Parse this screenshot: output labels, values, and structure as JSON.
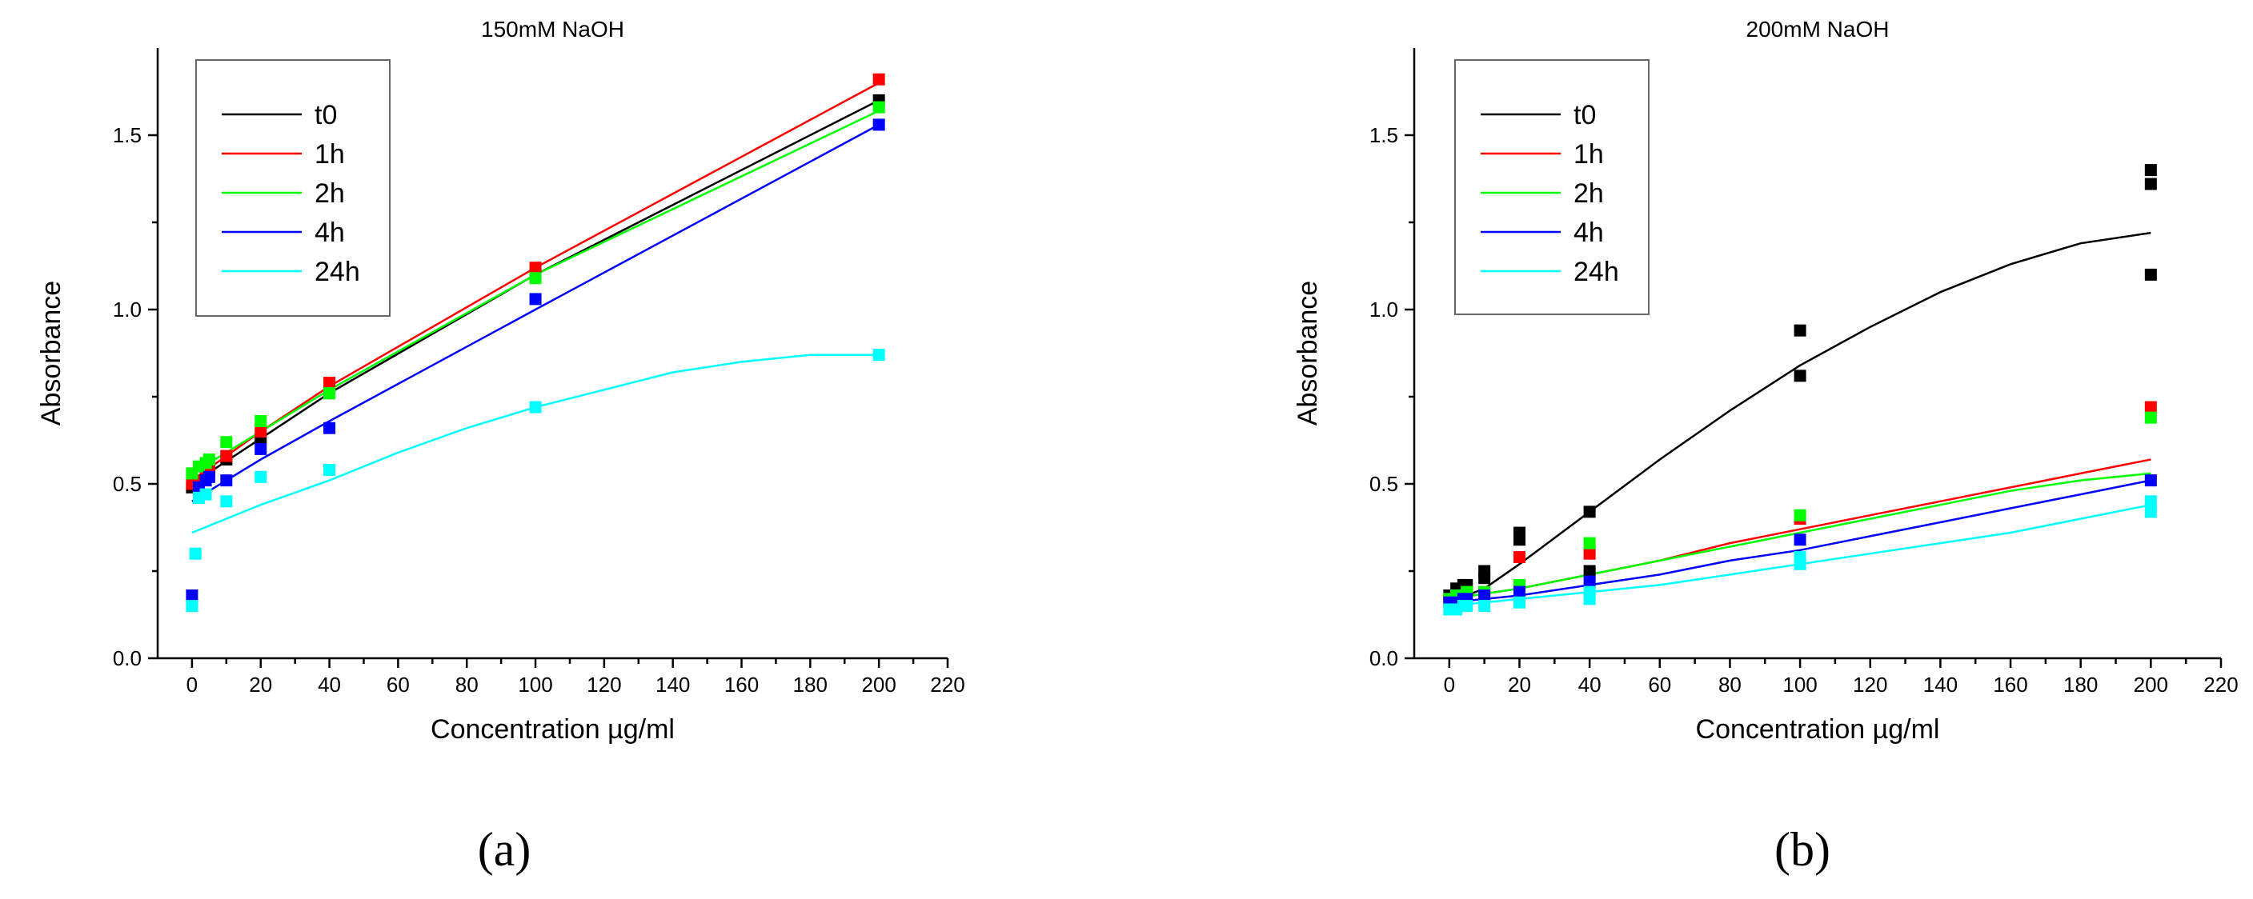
{
  "chart_data": [
    {
      "type": "scatter",
      "title": "150mM NaOH",
      "xlabel": "Concentration µg/ml",
      "ylabel": "Absorbance",
      "xlim": [
        -10,
        220
      ],
      "ylim": [
        0,
        1.75
      ],
      "xticks": [
        0,
        20,
        40,
        60,
        80,
        100,
        120,
        140,
        160,
        180,
        200,
        220
      ],
      "yticks": [
        0.0,
        0.5,
        1.0,
        1.5
      ],
      "panel_label": "(a)",
      "legend_position": "top-left",
      "series": [
        {
          "name": "t0",
          "color": "#000000",
          "points": [
            [
              0,
              0.49
            ],
            [
              2,
              0.5
            ],
            [
              4,
              0.53
            ],
            [
              5,
              0.54
            ],
            [
              10,
              0.57
            ],
            [
              20,
              0.63
            ],
            [
              40,
              0.76
            ],
            [
              100,
              1.1
            ],
            [
              200,
              1.6
            ]
          ],
          "fit": [
            [
              0,
              0.5
            ],
            [
              20,
              0.63
            ],
            [
              40,
              0.76
            ],
            [
              100,
              1.1
            ],
            [
              200,
              1.6
            ]
          ]
        },
        {
          "name": "1h",
          "color": "#ff0000",
          "points": [
            [
              0,
              0.5
            ],
            [
              2,
              0.51
            ],
            [
              4,
              0.54
            ],
            [
              5,
              0.55
            ],
            [
              10,
              0.58
            ],
            [
              20,
              0.65
            ],
            [
              40,
              0.79
            ],
            [
              100,
              1.12
            ],
            [
              200,
              1.66
            ]
          ],
          "fit": [
            [
              0,
              0.51
            ],
            [
              20,
              0.65
            ],
            [
              40,
              0.78
            ],
            [
              100,
              1.12
            ],
            [
              200,
              1.65
            ]
          ]
        },
        {
          "name": "2h",
          "color": "#00ff00",
          "points": [
            [
              0,
              0.53
            ],
            [
              2,
              0.55
            ],
            [
              4,
              0.56
            ],
            [
              5,
              0.57
            ],
            [
              10,
              0.62
            ],
            [
              20,
              0.68
            ],
            [
              40,
              0.76
            ],
            [
              100,
              1.09
            ],
            [
              200,
              1.58
            ]
          ],
          "fit": [
            [
              0,
              0.53
            ],
            [
              20,
              0.65
            ],
            [
              40,
              0.77
            ],
            [
              100,
              1.1
            ],
            [
              200,
              1.57
            ]
          ]
        },
        {
          "name": "4h",
          "color": "#0000ff",
          "points": [
            [
              0,
              0.18
            ],
            [
              2,
              0.49
            ],
            [
              4,
              0.51
            ],
            [
              5,
              0.52
            ],
            [
              10,
              0.51
            ],
            [
              20,
              0.6
            ],
            [
              40,
              0.66
            ],
            [
              100,
              1.03
            ],
            [
              200,
              1.53
            ]
          ],
          "fit": [
            [
              0,
              0.45
            ],
            [
              20,
              0.57
            ],
            [
              40,
              0.68
            ],
            [
              100,
              1.0
            ],
            [
              200,
              1.53
            ]
          ]
        },
        {
          "name": "24h",
          "color": "#00ffff",
          "points": [
            [
              0,
              0.15
            ],
            [
              1,
              0.3
            ],
            [
              2,
              0.46
            ],
            [
              4,
              0.47
            ],
            [
              10,
              0.45
            ],
            [
              20,
              0.52
            ],
            [
              40,
              0.54
            ],
            [
              100,
              0.72
            ],
            [
              200,
              0.87
            ]
          ],
          "fit": [
            [
              0,
              0.36
            ],
            [
              20,
              0.44
            ],
            [
              40,
              0.51
            ],
            [
              60,
              0.59
            ],
            [
              80,
              0.66
            ],
            [
              100,
              0.72
            ],
            [
              120,
              0.77
            ],
            [
              140,
              0.82
            ],
            [
              160,
              0.85
            ],
            [
              180,
              0.87
            ],
            [
              200,
              0.87
            ]
          ]
        }
      ]
    },
    {
      "type": "scatter",
      "title": "200mM NaOH",
      "xlabel": "Concentration µg/ml",
      "ylabel": "Absorbance",
      "xlim": [
        -10,
        220
      ],
      "ylim": [
        0,
        1.75
      ],
      "xticks": [
        0,
        20,
        40,
        60,
        80,
        100,
        120,
        140,
        160,
        180,
        200,
        220
      ],
      "yticks": [
        0.0,
        0.5,
        1.0,
        1.5
      ],
      "panel_label": "(b)",
      "legend_position": "top-left",
      "series": [
        {
          "name": "t0",
          "color": "#000000",
          "points": [
            [
              0,
              0.18
            ],
            [
              2,
              0.2
            ],
            [
              4,
              0.21
            ],
            [
              5,
              0.21
            ],
            [
              10,
              0.23
            ],
            [
              10,
              0.25
            ],
            [
              20,
              0.34
            ],
            [
              20,
              0.36
            ],
            [
              40,
              0.42
            ],
            [
              40,
              0.25
            ],
            [
              100,
              0.81
            ],
            [
              100,
              0.94
            ],
            [
              200,
              1.36
            ],
            [
              200,
              1.4
            ],
            [
              200,
              1.1
            ]
          ],
          "fit": [
            [
              0,
              0.16
            ],
            [
              10,
              0.2
            ],
            [
              20,
              0.27
            ],
            [
              40,
              0.42
            ],
            [
              60,
              0.57
            ],
            [
              80,
              0.71
            ],
            [
              100,
              0.84
            ],
            [
              120,
              0.95
            ],
            [
              140,
              1.05
            ],
            [
              160,
              1.13
            ],
            [
              180,
              1.19
            ],
            [
              200,
              1.22
            ]
          ]
        },
        {
          "name": "1h",
          "color": "#ff0000",
          "points": [
            [
              0,
              0.17
            ],
            [
              2,
              0.18
            ],
            [
              4,
              0.18
            ],
            [
              5,
              0.19
            ],
            [
              10,
              0.19
            ],
            [
              20,
              0.29
            ],
            [
              40,
              0.3
            ],
            [
              100,
              0.4
            ],
            [
              200,
              0.72
            ]
          ],
          "fit": [
            [
              0,
              0.17
            ],
            [
              20,
              0.2
            ],
            [
              40,
              0.24
            ],
            [
              60,
              0.28
            ],
            [
              80,
              0.33
            ],
            [
              100,
              0.37
            ],
            [
              120,
              0.41
            ],
            [
              140,
              0.45
            ],
            [
              160,
              0.49
            ],
            [
              180,
              0.53
            ],
            [
              200,
              0.57
            ]
          ]
        },
        {
          "name": "2h",
          "color": "#00ff00",
          "points": [
            [
              0,
              0.17
            ],
            [
              2,
              0.18
            ],
            [
              4,
              0.18
            ],
            [
              5,
              0.19
            ],
            [
              10,
              0.19
            ],
            [
              20,
              0.21
            ],
            [
              40,
              0.33
            ],
            [
              100,
              0.41
            ],
            [
              200,
              0.69
            ]
          ],
          "fit": [
            [
              0,
              0.17
            ],
            [
              20,
              0.2
            ],
            [
              40,
              0.24
            ],
            [
              60,
              0.28
            ],
            [
              80,
              0.32
            ],
            [
              100,
              0.36
            ],
            [
              120,
              0.4
            ],
            [
              140,
              0.44
            ],
            [
              160,
              0.48
            ],
            [
              180,
              0.51
            ],
            [
              200,
              0.53
            ]
          ]
        },
        {
          "name": "4h",
          "color": "#0000ff",
          "points": [
            [
              0,
              0.16
            ],
            [
              2,
              0.16
            ],
            [
              4,
              0.17
            ],
            [
              5,
              0.17
            ],
            [
              10,
              0.18
            ],
            [
              20,
              0.19
            ],
            [
              40,
              0.22
            ],
            [
              100,
              0.34
            ],
            [
              200,
              0.51
            ]
          ],
          "fit": [
            [
              0,
              0.16
            ],
            [
              20,
              0.18
            ],
            [
              40,
              0.21
            ],
            [
              60,
              0.24
            ],
            [
              80,
              0.28
            ],
            [
              100,
              0.31
            ],
            [
              120,
              0.35
            ],
            [
              140,
              0.39
            ],
            [
              160,
              0.43
            ],
            [
              180,
              0.47
            ],
            [
              200,
              0.51
            ]
          ]
        },
        {
          "name": "24h",
          "color": "#00ffff",
          "points": [
            [
              0,
              0.14
            ],
            [
              2,
              0.14
            ],
            [
              4,
              0.15
            ],
            [
              5,
              0.15
            ],
            [
              10,
              0.15
            ],
            [
              20,
              0.16
            ],
            [
              40,
              0.17
            ],
            [
              40,
              0.19
            ],
            [
              100,
              0.27
            ],
            [
              100,
              0.29
            ],
            [
              200,
              0.42
            ],
            [
              200,
              0.45
            ]
          ],
          "fit": [
            [
              0,
              0.15
            ],
            [
              20,
              0.17
            ],
            [
              40,
              0.19
            ],
            [
              60,
              0.21
            ],
            [
              80,
              0.24
            ],
            [
              100,
              0.27
            ],
            [
              120,
              0.3
            ],
            [
              140,
              0.33
            ],
            [
              160,
              0.36
            ],
            [
              180,
              0.4
            ],
            [
              200,
              0.44
            ]
          ]
        }
      ]
    }
  ]
}
